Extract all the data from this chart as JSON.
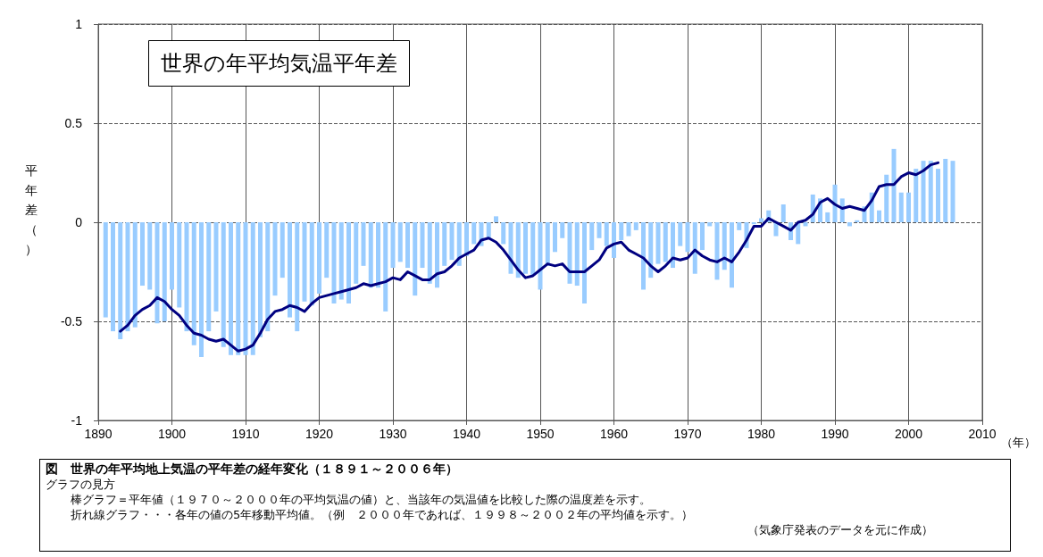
{
  "chart_data": {
    "type": "bar",
    "title": "世界の年平均気温平年差",
    "subtitle": "図　世界の年平均地上気温の平年差の経年変化（１８９１～２００６年）",
    "ylabel": "平年差（）",
    "xlabel": "（年）",
    "annotations": [
      "グラフの見方",
      "棒グラフ＝平年値（１９７０～２０００年の平均気温の値）と、当該年の気温値を比較した際の温度差を示す。",
      "折れ線グラフ・・・各年の値の5年移動平均値。（例　２０００年であれば、１９９８～２００２年の平均値を示す。）",
      "（気象庁発表のデータを元に作成）"
    ],
    "xlim": [
      1890,
      2010
    ],
    "xticks": [
      1890,
      1900,
      1910,
      1920,
      1930,
      1940,
      1950,
      1960,
      1970,
      1980,
      1990,
      2000,
      2010
    ],
    "ylim": [
      -1,
      1
    ],
    "yticks": [
      -1,
      -0.5,
      0,
      0.5,
      1
    ],
    "grid": true,
    "series": [
      {
        "color": "#99ccff",
        "x": [
          1891,
          1892,
          1893,
          1894,
          1895,
          1896,
          1897,
          1898,
          1899,
          1900,
          1901,
          1902,
          1903,
          1904,
          1905,
          1906,
          1907,
          1908,
          1909,
          1910,
          1911,
          1912,
          1913,
          1914,
          1915,
          1916,
          1917,
          1918,
          1919,
          1920,
          1921,
          1922,
          1923,
          1924,
          1925,
          1926,
          1927,
          1928,
          1929,
          1930,
          1931,
          1932,
          1933,
          1934,
          1935,
          1936,
          1937,
          1938,
          1939,
          1940,
          1941,
          1942,
          1943,
          1944,
          1945,
          1946,
          1947,
          1948,
          1949,
          1950,
          1951,
          1952,
          1953,
          1954,
          1955,
          1956,
          1957,
          1958,
          1959,
          1960,
          1961,
          1962,
          1963,
          1964,
          1965,
          1966,
          1967,
          1968,
          1969,
          1970,
          1971,
          1972,
          1973,
          1974,
          1975,
          1976,
          1977,
          1978,
          1979,
          1980,
          1981,
          1982,
          1983,
          1984,
          1985,
          1986,
          1987,
          1988,
          1989,
          1990,
          1991,
          1992,
          1993,
          1994,
          1995,
          1996,
          1997,
          1998,
          1999,
          2000,
          2001,
          2002,
          2003,
          2004,
          2005,
          2006
        ],
        "values": [
          -0.48,
          -0.55,
          -0.59,
          -0.55,
          -0.53,
          -0.32,
          -0.34,
          -0.51,
          -0.5,
          -0.34,
          -0.43,
          -0.55,
          -0.62,
          -0.68,
          -0.55,
          -0.45,
          -0.63,
          -0.67,
          -0.67,
          -0.67,
          -0.67,
          -0.58,
          -0.55,
          -0.37,
          -0.28,
          -0.48,
          -0.55,
          -0.4,
          -0.42,
          -0.36,
          -0.28,
          -0.41,
          -0.39,
          -0.41,
          -0.31,
          -0.22,
          -0.33,
          -0.33,
          -0.45,
          -0.23,
          -0.2,
          -0.23,
          -0.37,
          -0.23,
          -0.31,
          -0.33,
          -0.22,
          -0.19,
          -0.22,
          -0.17,
          -0.11,
          -0.12,
          -0.08,
          0.03,
          -0.11,
          -0.26,
          -0.28,
          -0.26,
          -0.27,
          -0.34,
          -0.22,
          -0.15,
          -0.08,
          -0.31,
          -0.32,
          -0.41,
          -0.14,
          -0.08,
          -0.12,
          -0.18,
          -0.09,
          -0.07,
          -0.04,
          -0.34,
          -0.28,
          -0.21,
          -0.2,
          -0.23,
          -0.12,
          -0.15,
          -0.26,
          -0.14,
          -0.02,
          -0.29,
          -0.24,
          -0.33,
          -0.04,
          -0.13,
          -0.01,
          0.02,
          0.06,
          -0.07,
          0.09,
          -0.09,
          -0.11,
          -0.02,
          0.14,
          0.12,
          0.05,
          0.19,
          0.12,
          -0.02,
          0.01,
          0.08,
          0.15,
          0.06,
          0.24,
          0.37,
          0.15,
          0.15,
          0.27,
          0.31,
          0.31,
          0.27,
          0.32,
          0.31
        ]
      },
      {
        "type": "line",
        "color": "#000080",
        "marker": "none",
        "line_style": "solid",
        "x": [
          1893,
          1894,
          1895,
          1896,
          1897,
          1898,
          1899,
          1900,
          1901,
          1902,
          1903,
          1904,
          1905,
          1906,
          1907,
          1908,
          1909,
          1910,
          1911,
          1912,
          1913,
          1914,
          1915,
          1916,
          1917,
          1918,
          1919,
          1920,
          1921,
          1922,
          1923,
          1924,
          1925,
          1926,
          1927,
          1928,
          1929,
          1930,
          1931,
          1932,
          1933,
          1934,
          1935,
          1936,
          1937,
          1938,
          1939,
          1940,
          1941,
          1942,
          1943,
          1944,
          1945,
          1946,
          1947,
          1948,
          1949,
          1950,
          1951,
          1952,
          1953,
          1954,
          1955,
          1956,
          1957,
          1958,
          1959,
          1960,
          1961,
          1962,
          1963,
          1964,
          1965,
          1966,
          1967,
          1968,
          1969,
          1970,
          1971,
          1972,
          1973,
          1974,
          1975,
          1976,
          1977,
          1978,
          1979,
          1980,
          1981,
          1982,
          1983,
          1984,
          1985,
          1986,
          1987,
          1988,
          1989,
          1990,
          1991,
          1992,
          1993,
          1994,
          1995,
          1996,
          1997,
          1998,
          1999,
          2000,
          2001,
          2002,
          2003,
          2004
        ],
        "values": [
          -0.55,
          -0.52,
          -0.47,
          -0.44,
          -0.42,
          -0.38,
          -0.4,
          -0.44,
          -0.47,
          -0.52,
          -0.56,
          -0.57,
          -0.59,
          -0.6,
          -0.59,
          -0.62,
          -0.65,
          -0.64,
          -0.62,
          -0.56,
          -0.49,
          -0.45,
          -0.44,
          -0.42,
          -0.43,
          -0.45,
          -0.41,
          -0.38,
          -0.37,
          -0.36,
          -0.35,
          -0.34,
          -0.33,
          -0.31,
          -0.32,
          -0.31,
          -0.3,
          -0.28,
          -0.29,
          -0.25,
          -0.27,
          -0.29,
          -0.29,
          -0.26,
          -0.25,
          -0.22,
          -0.18,
          -0.16,
          -0.14,
          -0.09,
          -0.08,
          -0.1,
          -0.14,
          -0.19,
          -0.24,
          -0.28,
          -0.27,
          -0.24,
          -0.21,
          -0.22,
          -0.21,
          -0.25,
          -0.25,
          -0.25,
          -0.22,
          -0.19,
          -0.13,
          -0.11,
          -0.1,
          -0.14,
          -0.16,
          -0.18,
          -0.22,
          -0.25,
          -0.22,
          -0.18,
          -0.19,
          -0.18,
          -0.14,
          -0.17,
          -0.19,
          -0.2,
          -0.18,
          -0.2,
          -0.15,
          -0.09,
          -0.02,
          -0.02,
          0.02,
          0,
          -0.02,
          -0.04,
          0,
          0.01,
          0.04,
          0.1,
          0.12,
          0.09,
          0.07,
          0.08,
          0.07,
          0.06,
          0.11,
          0.18,
          0.19,
          0.19,
          0.23,
          0.25,
          0.24,
          0.26,
          0.29,
          0.3
        ]
      }
    ]
  }
}
